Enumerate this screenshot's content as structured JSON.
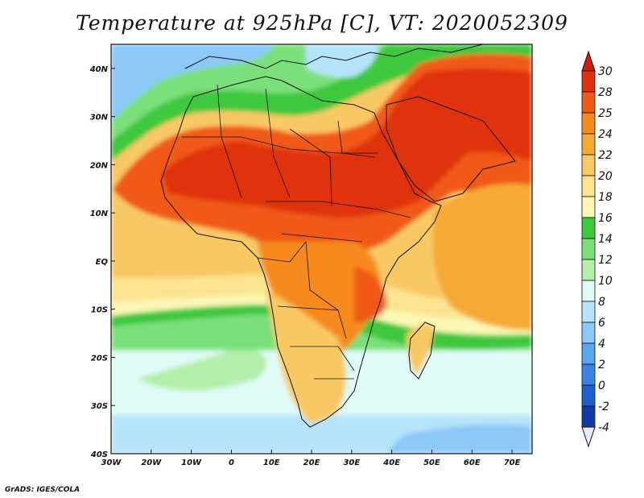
{
  "title": "Temperature at 925hPa [C], VT: 2020052309",
  "credit": "GrADS: IGES/COLA",
  "map": {
    "lon_range": [
      -30,
      75
    ],
    "lat_range": [
      -40,
      45
    ],
    "lon_ticks": [
      {
        "value": -30,
        "label": "30W"
      },
      {
        "value": -20,
        "label": "20W"
      },
      {
        "value": -10,
        "label": "10W"
      },
      {
        "value": 0,
        "label": "0"
      },
      {
        "value": 10,
        "label": "10E"
      },
      {
        "value": 20,
        "label": "20E"
      },
      {
        "value": 30,
        "label": "30E"
      },
      {
        "value": 40,
        "label": "40E"
      },
      {
        "value": 50,
        "label": "50E"
      },
      {
        "value": 60,
        "label": "60E"
      },
      {
        "value": 70,
        "label": "70E"
      }
    ],
    "lat_ticks": [
      {
        "value": 40,
        "label": "40N"
      },
      {
        "value": 30,
        "label": "30N"
      },
      {
        "value": 20,
        "label": "20N"
      },
      {
        "value": 10,
        "label": "10N"
      },
      {
        "value": 0,
        "label": "EQ"
      },
      {
        "value": -10,
        "label": "10S"
      },
      {
        "value": -20,
        "label": "20S"
      },
      {
        "value": -30,
        "label": "30S"
      },
      {
        "value": -40,
        "label": "40S"
      }
    ]
  },
  "colorbar": {
    "labels": [
      "30",
      "28",
      "25",
      "24",
      "22",
      "20",
      "18",
      "16",
      "14",
      "12",
      "10",
      "8",
      "6",
      "4",
      "2",
      "0",
      "-2",
      "-4"
    ],
    "colors": [
      "#e03010",
      "#f05a18",
      "#f78a1a",
      "#f6aa34",
      "#f8c964",
      "#fbe490",
      "#fbf7b4",
      "#3dc83d",
      "#7ce07a",
      "#b4f0ac",
      "#e0fbf6",
      "#b6e4fb",
      "#8cc8f8",
      "#5aa6ef",
      "#3a82e3",
      "#1e5fd0",
      "#1238a8",
      "#0a1870"
    ],
    "top_color": "#d01c0a",
    "bottom_color": "#e8e8ff"
  }
}
